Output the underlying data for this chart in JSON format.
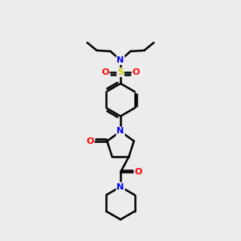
{
  "bg_color": "#ececec",
  "atom_colors": {
    "N": "#0000ff",
    "O": "#ff0000",
    "S": "#cccc00",
    "C": "#000000"
  },
  "bond_color": "#000000",
  "bond_width": 1.8,
  "figsize": [
    3.0,
    3.0
  ],
  "dpi": 100,
  "xlim": [
    0,
    10
  ],
  "ylim": [
    0,
    14
  ]
}
